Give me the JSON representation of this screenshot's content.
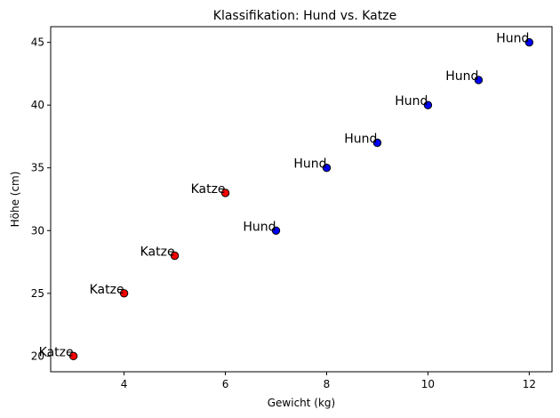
{
  "chart_data": {
    "type": "scatter",
    "title": "Klassifikation: Hund vs. Katze",
    "xlabel": "Gewicht (kg)",
    "ylabel": "Höhe (cm)",
    "xlim": [
      2.55,
      12.45
    ],
    "ylim": [
      18.75,
      46.25
    ],
    "xticks": [
      4,
      6,
      8,
      10,
      12
    ],
    "yticks": [
      20,
      25,
      30,
      35,
      40,
      45
    ],
    "grid": false,
    "points": [
      {
        "x": 3,
        "y": 20,
        "label": "Katze",
        "color": "#ff0000"
      },
      {
        "x": 4,
        "y": 25,
        "label": "Katze",
        "color": "#ff0000"
      },
      {
        "x": 5,
        "y": 28,
        "label": "Katze",
        "color": "#ff0000"
      },
      {
        "x": 6,
        "y": 33,
        "label": "Katze",
        "color": "#ff0000"
      },
      {
        "x": 7,
        "y": 30,
        "label": "Hund",
        "color": "#0000ff"
      },
      {
        "x": 8,
        "y": 35,
        "label": "Hund",
        "color": "#0000ff"
      },
      {
        "x": 9,
        "y": 37,
        "label": "Hund",
        "color": "#0000ff"
      },
      {
        "x": 10,
        "y": 40,
        "label": "Hund",
        "color": "#0000ff"
      },
      {
        "x": 11,
        "y": 42,
        "label": "Hund",
        "color": "#0000ff"
      },
      {
        "x": 12,
        "y": 45,
        "label": "Hund",
        "color": "#0000ff"
      }
    ]
  }
}
